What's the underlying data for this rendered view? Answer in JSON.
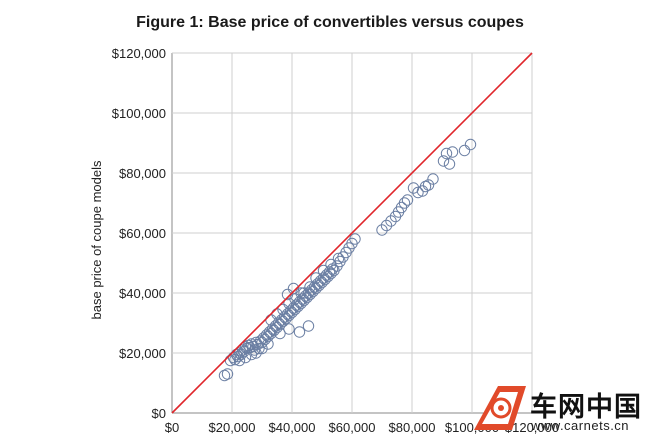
{
  "chart_data": {
    "type": "scatter",
    "title": "Figure 1: Base price of convertibles versus coupes",
    "xlabel": "",
    "ylabel": "base price of coupe models",
    "xlim": [
      0,
      120000
    ],
    "ylim": [
      0,
      120000
    ],
    "x_ticks": [
      "$0",
      "$20,000",
      "$40,000",
      "$60,000",
      "$80,000",
      "$100,000",
      "$120,000"
    ],
    "y_ticks": [
      "$0",
      "$20,000",
      "$40,000",
      "$60,000",
      "$80,000",
      "$100,000",
      "$120,000"
    ],
    "grid": true,
    "reference_line": {
      "from": [
        0,
        0
      ],
      "to": [
        120000,
        120000
      ],
      "color": "#e0262b"
    },
    "marker_color": "#6b7fa3",
    "points": [
      [
        17500,
        12500
      ],
      [
        18500,
        13000
      ],
      [
        19500,
        17500
      ],
      [
        20500,
        18500
      ],
      [
        21000,
        17800
      ],
      [
        21500,
        19500
      ],
      [
        22000,
        18800
      ],
      [
        22500,
        20000
      ],
      [
        23000,
        19500
      ],
      [
        23500,
        21000
      ],
      [
        24000,
        20500
      ],
      [
        24500,
        22000
      ],
      [
        25000,
        21500
      ],
      [
        25500,
        22500
      ],
      [
        26000,
        21800
      ],
      [
        26500,
        23000
      ],
      [
        27000,
        22200
      ],
      [
        27500,
        21000
      ],
      [
        28000,
        23500
      ],
      [
        28500,
        22800
      ],
      [
        29000,
        21500
      ],
      [
        29500,
        24000
      ],
      [
        30000,
        23500
      ],
      [
        30500,
        25000
      ],
      [
        31000,
        24500
      ],
      [
        31500,
        26000
      ],
      [
        32000,
        25500
      ],
      [
        32500,
        27000
      ],
      [
        33000,
        26500
      ],
      [
        33500,
        28000
      ],
      [
        34000,
        27500
      ],
      [
        34500,
        29000
      ],
      [
        35000,
        28500
      ],
      [
        35500,
        30000
      ],
      [
        36000,
        29500
      ],
      [
        36500,
        31000
      ],
      [
        37000,
        30500
      ],
      [
        37500,
        32000
      ],
      [
        38000,
        31500
      ],
      [
        38500,
        33000
      ],
      [
        39000,
        32500
      ],
      [
        39500,
        34000
      ],
      [
        40000,
        33500
      ],
      [
        40500,
        35000
      ],
      [
        41000,
        34500
      ],
      [
        41500,
        36000
      ],
      [
        42000,
        35500
      ],
      [
        42500,
        37000
      ],
      [
        43000,
        36500
      ],
      [
        43500,
        38000
      ],
      [
        44000,
        37500
      ],
      [
        44500,
        39000
      ],
      [
        45000,
        38500
      ],
      [
        45500,
        40000
      ],
      [
        46000,
        39500
      ],
      [
        46500,
        41000
      ],
      [
        47000,
        40500
      ],
      [
        47500,
        42000
      ],
      [
        48000,
        41500
      ],
      [
        48500,
        43000
      ],
      [
        49000,
        42500
      ],
      [
        49500,
        44000
      ],
      [
        50000,
        43500
      ],
      [
        50500,
        45000
      ],
      [
        51000,
        44500
      ],
      [
        51500,
        46000
      ],
      [
        52000,
        45500
      ],
      [
        52500,
        47000
      ],
      [
        53000,
        46500
      ],
      [
        53500,
        48000
      ],
      [
        54000,
        47500
      ],
      [
        55000,
        49000
      ],
      [
        56000,
        50500
      ],
      [
        57000,
        52000
      ],
      [
        58000,
        53500
      ],
      [
        59000,
        55000
      ],
      [
        60000,
        56500
      ],
      [
        61000,
        58000
      ],
      [
        33000,
        31000
      ],
      [
        35000,
        33000
      ],
      [
        37000,
        34500
      ],
      [
        39000,
        36500
      ],
      [
        41000,
        38000
      ],
      [
        43000,
        40000
      ],
      [
        38500,
        39500
      ],
      [
        40500,
        41500
      ],
      [
        42500,
        27000
      ],
      [
        45500,
        29000
      ],
      [
        39000,
        28000
      ],
      [
        36000,
        26500
      ],
      [
        28000,
        20000
      ],
      [
        30000,
        21500
      ],
      [
        32000,
        23000
      ],
      [
        26500,
        19500
      ],
      [
        24500,
        18500
      ],
      [
        22500,
        17500
      ],
      [
        48000,
        45000
      ],
      [
        50500,
        47500
      ],
      [
        53000,
        49500
      ],
      [
        55500,
        51500
      ],
      [
        46000,
        42000
      ],
      [
        44000,
        40000
      ],
      [
        70000,
        61000
      ],
      [
        71500,
        62500
      ],
      [
        73000,
        64000
      ],
      [
        74500,
        65500
      ],
      [
        75500,
        67000
      ],
      [
        76500,
        68500
      ],
      [
        77500,
        70000
      ],
      [
        78500,
        71000
      ],
      [
        80500,
        75000
      ],
      [
        82000,
        73500
      ],
      [
        83500,
        74000
      ],
      [
        84500,
        75500
      ],
      [
        85500,
        76000
      ],
      [
        87000,
        78000
      ],
      [
        90500,
        84000
      ],
      [
        91500,
        86500
      ],
      [
        92500,
        83000
      ],
      [
        93500,
        87000
      ],
      [
        97500,
        87500
      ],
      [
        99500,
        89500
      ]
    ]
  },
  "watermark": {
    "text": "车网中国",
    "url": "www.carnets.cn"
  }
}
